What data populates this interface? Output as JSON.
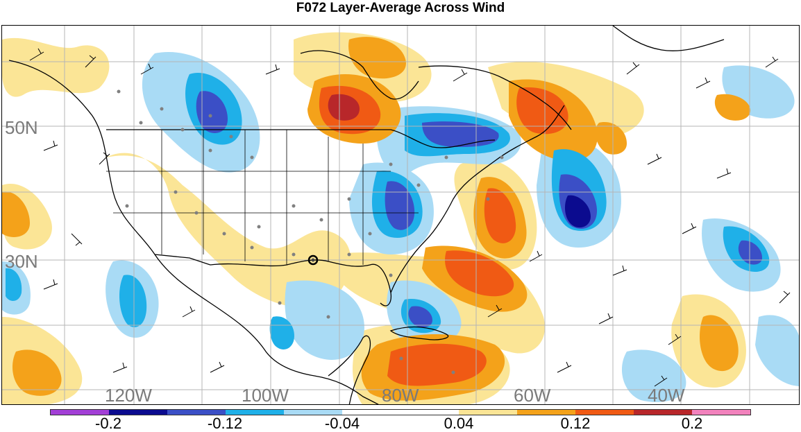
{
  "title": "F072 Layer-Average Across Wind",
  "lat_labels": [
    "50N",
    "30N"
  ],
  "lon_labels": [
    "120W",
    "100W",
    "80W",
    "60W",
    "40W"
  ],
  "colorbar": {
    "colors": [
      "#a23fd6",
      "#0b0b8f",
      "#3b4fc6",
      "#1fb0e8",
      "#a9dbf5",
      "#ffffff",
      "#ffffff",
      "#fbe596",
      "#f4a21a",
      "#f05a14",
      "#b8272a",
      "#f282bd"
    ],
    "tick_labels": [
      "-0.2",
      "-0.12",
      "-0.04",
      "0.04",
      "0.12",
      "0.2"
    ]
  },
  "colors": {
    "strong_negative": "#0b0b8f",
    "negative": "#3b4fc6",
    "mid_negative": "#1fb0e8",
    "weak_negative": "#a9dbf5",
    "weak_positive": "#fbe596",
    "positive": "#f4a21a",
    "mid_positive": "#f05a14",
    "strong_positive": "#b8272a",
    "grid": "#b5b5b5",
    "coast": "#000000",
    "station_dot": "#808080"
  }
}
